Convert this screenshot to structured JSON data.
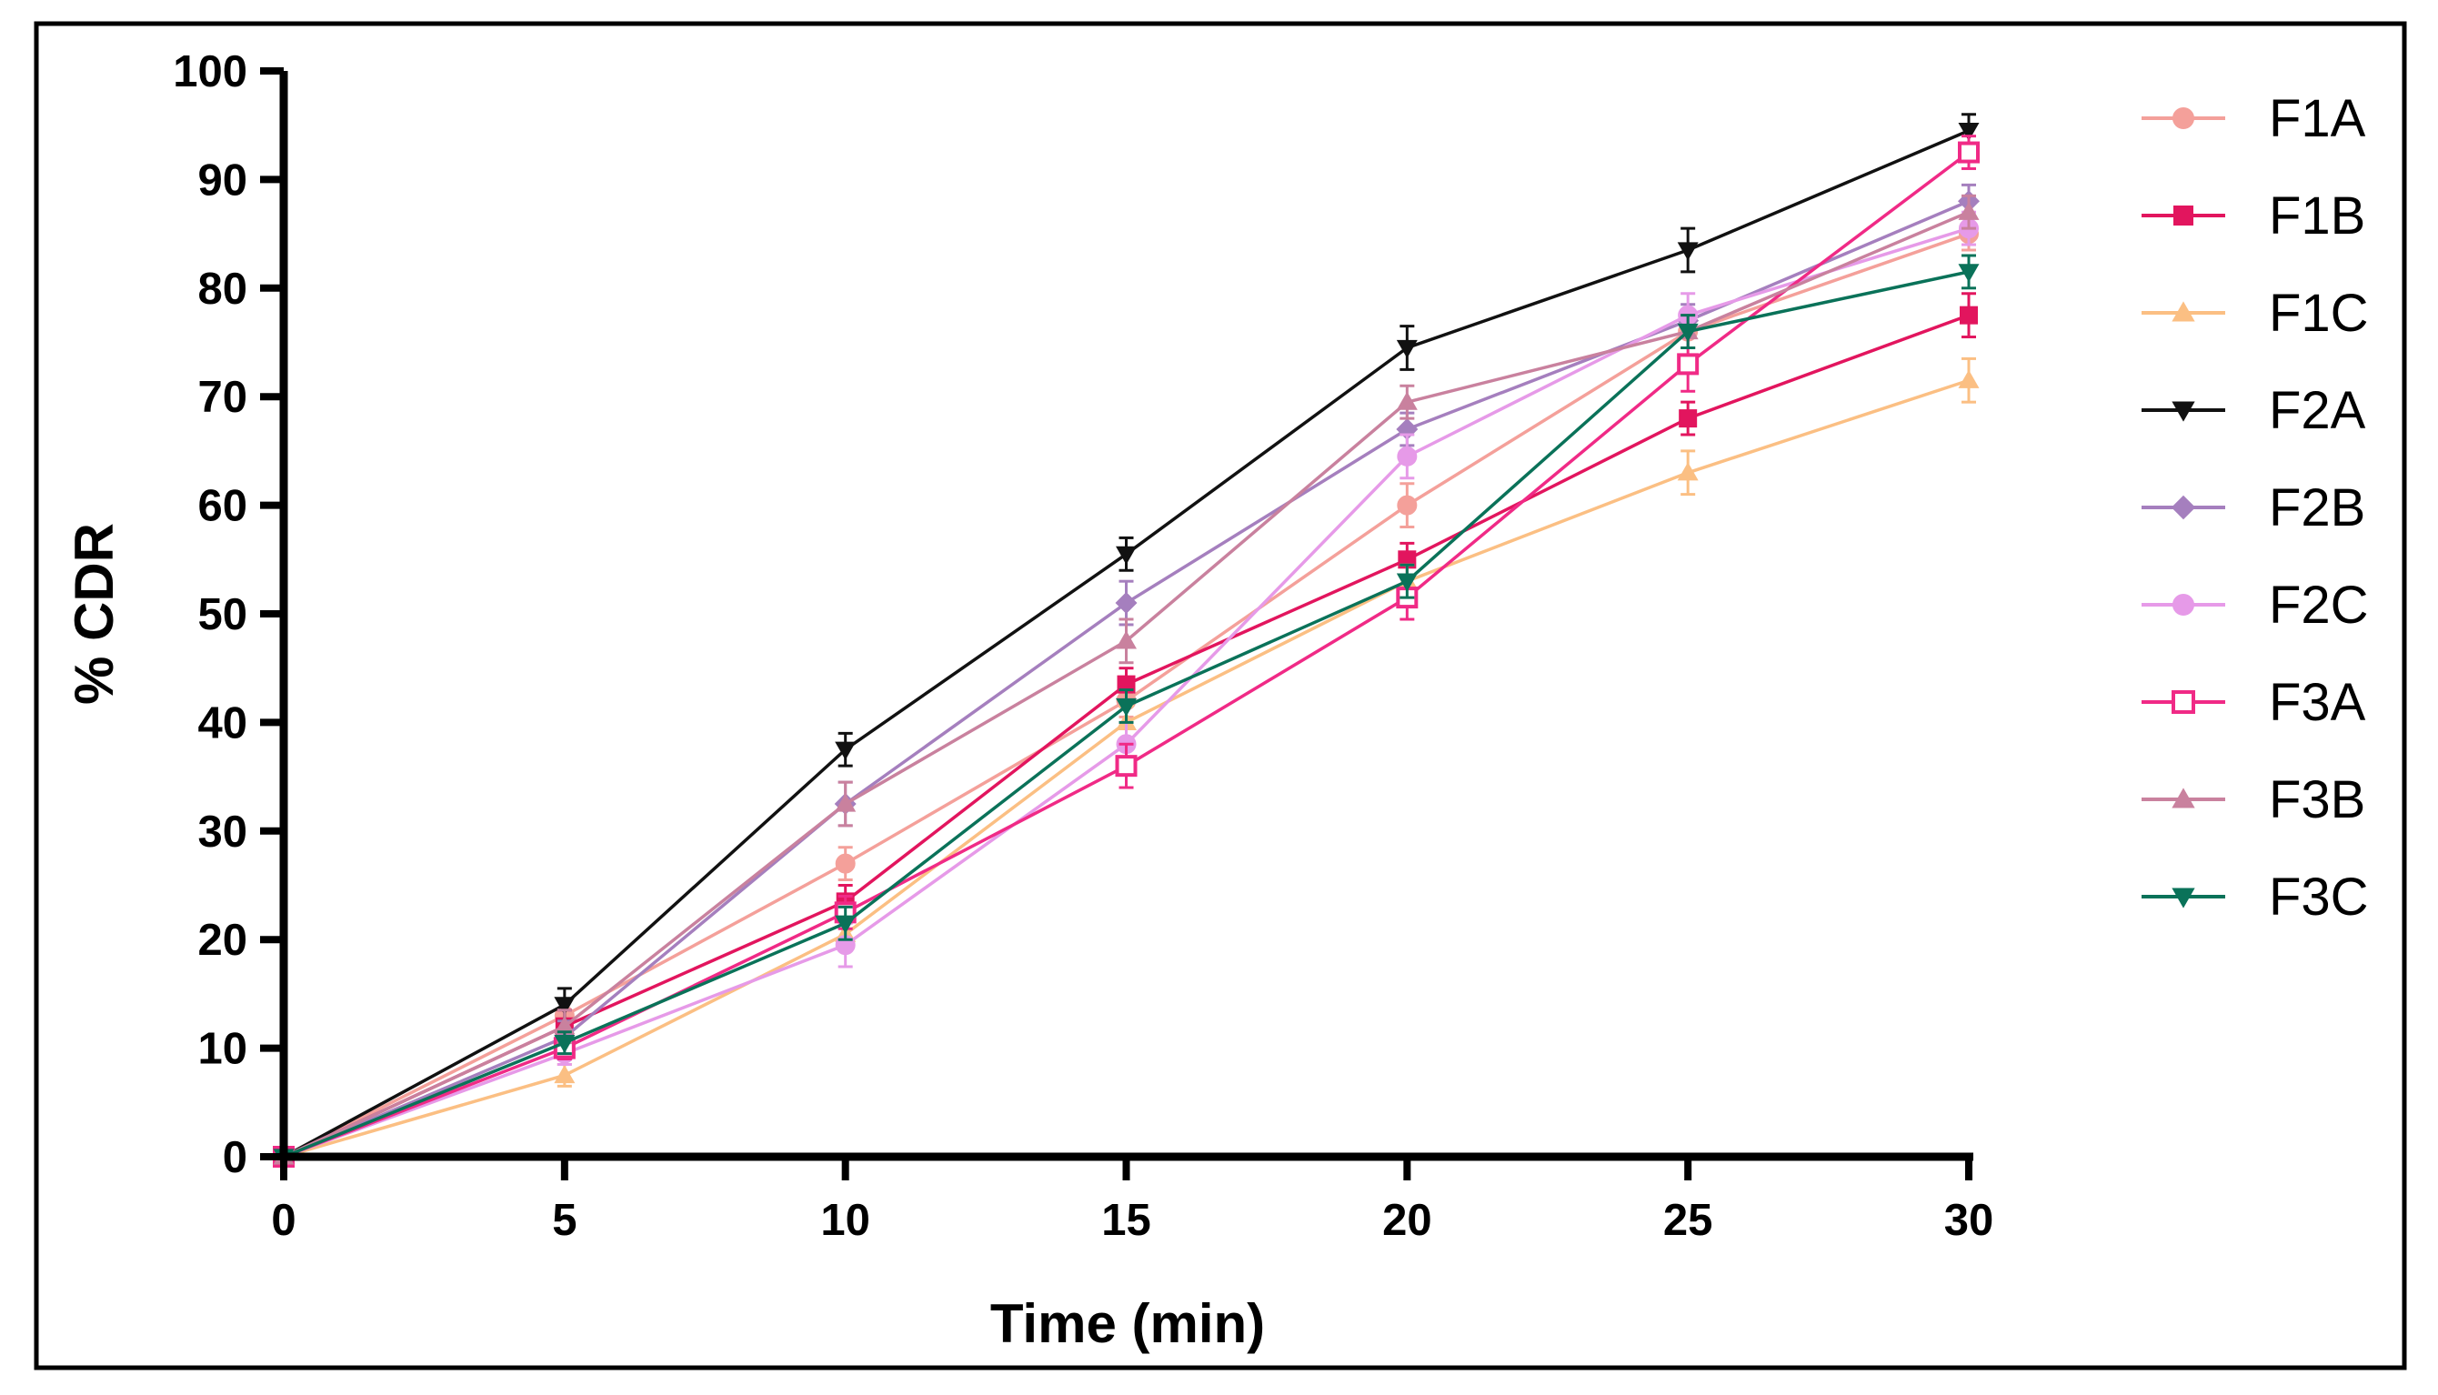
{
  "chart_data": {
    "type": "line",
    "title": "",
    "xlabel": "Time (min)",
    "ylabel": "% CDR",
    "xlim": [
      0,
      30
    ],
    "ylim": [
      0,
      100
    ],
    "x": [
      0,
      5,
      10,
      15,
      20,
      25,
      30
    ],
    "xticks": [
      "0",
      "5",
      "10",
      "15",
      "20",
      "25",
      "30"
    ],
    "yticks": [
      "0",
      "10",
      "20",
      "30",
      "40",
      "50",
      "60",
      "70",
      "80",
      "90",
      "100"
    ],
    "grid": false,
    "legend_position": "right",
    "series": [
      {
        "name": "F1A",
        "color": "#f4a09a",
        "marker": "circle",
        "values": [
          0,
          13,
          27,
          42,
          60,
          76,
          85
        ],
        "errors": [
          0,
          1.5,
          1.5,
          1.5,
          2,
          1.5,
          1.5
        ]
      },
      {
        "name": "F1B",
        "color": "#e2155e",
        "marker": "square",
        "values": [
          0,
          12,
          23.5,
          43.5,
          55,
          68,
          77.5
        ],
        "errors": [
          0,
          1.5,
          1.5,
          1.5,
          1.5,
          1.5,
          2
        ]
      },
      {
        "name": "F1C",
        "color": "#fbbf83",
        "marker": "triangle-up",
        "values": [
          0,
          7.5,
          20.5,
          40,
          53,
          63,
          71.5
        ],
        "errors": [
          0,
          1,
          1.5,
          1.5,
          1.5,
          2,
          2
        ]
      },
      {
        "name": "F2A",
        "color": "#111111",
        "marker": "triangle-down",
        "values": [
          0,
          14,
          37.5,
          55.5,
          74.5,
          83.5,
          94.5
        ],
        "errors": [
          0,
          1.5,
          1.5,
          1.5,
          2,
          2,
          1.5
        ]
      },
      {
        "name": "F2B",
        "color": "#a57fbe",
        "marker": "diamond",
        "values": [
          0,
          11,
          32.5,
          51,
          67,
          77,
          88
        ],
        "errors": [
          0,
          1.5,
          2,
          2,
          1.5,
          1.5,
          1.5
        ]
      },
      {
        "name": "F2C",
        "color": "#e69ae8",
        "marker": "circle",
        "values": [
          0,
          9.5,
          19.5,
          38,
          64.5,
          77.5,
          85.5
        ],
        "errors": [
          0,
          1,
          2,
          2,
          2,
          2,
          1.5
        ]
      },
      {
        "name": "F3A",
        "color": "#f02a86",
        "marker": "square-open",
        "values": [
          0,
          10,
          22.5,
          36,
          51.5,
          73,
          92.5
        ],
        "errors": [
          0,
          1,
          1.5,
          2,
          2,
          2.5,
          1.5
        ]
      },
      {
        "name": "F3B",
        "color": "#c9819e",
        "marker": "triangle-up",
        "values": [
          0,
          12,
          32.5,
          47.5,
          69.5,
          76,
          87
        ],
        "errors": [
          0,
          1.5,
          2,
          2,
          1.5,
          1.5,
          1.5
        ]
      },
      {
        "name": "F3C",
        "color": "#0a7259",
        "marker": "triangle-down",
        "values": [
          0,
          10.5,
          21.5,
          41.5,
          53,
          76,
          81.5
        ],
        "errors": [
          0,
          1,
          1.5,
          1.5,
          1.5,
          1.5,
          1.5
        ]
      }
    ]
  }
}
